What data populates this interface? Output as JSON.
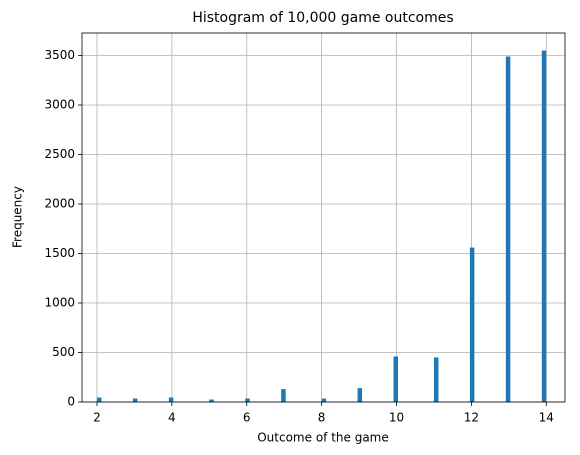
{
  "chart_data": {
    "type": "histogram",
    "title": "Histogram of 10,000 game outcomes",
    "x_label": "Outcome of the game",
    "y_label": "Frequency",
    "bins": [
      2,
      2.12,
      2.24,
      2.36,
      2.48,
      2.6,
      2.72,
      2.84,
      2.96,
      3.08,
      3.2,
      3.32,
      3.44,
      3.56,
      3.68,
      3.8,
      3.92,
      4.04,
      4.16,
      4.28,
      4.4,
      4.52,
      4.64,
      4.76,
      4.88,
      5,
      5.12,
      5.24,
      5.36,
      5.48,
      5.6,
      5.72,
      5.84,
      5.96,
      6.08,
      6.2,
      6.32,
      6.44,
      6.56,
      6.68,
      6.8,
      6.92,
      7.04,
      7.16,
      7.28,
      7.4,
      7.52,
      7.64,
      7.76,
      7.88,
      8,
      8.12,
      8.24,
      8.36,
      8.48,
      8.6,
      8.72,
      8.84,
      8.96,
      9.08,
      9.2,
      9.32,
      9.44,
      9.56,
      9.68,
      9.8,
      9.92,
      10.04,
      10.16,
      10.28,
      10.4,
      10.52,
      10.64,
      10.76,
      10.88,
      11,
      11.12,
      11.24,
      11.36,
      11.48,
      11.6,
      11.72,
      11.84,
      11.96,
      12.08,
      12.2,
      12.32,
      12.44,
      12.56,
      12.68,
      12.8,
      12.92,
      13.04,
      13.16,
      13.28,
      13.4,
      13.52,
      13.64,
      13.76,
      13.88,
      14
    ],
    "values": [
      45,
      0,
      0,
      0,
      0,
      0,
      0,
      0,
      35,
      0,
      0,
      0,
      0,
      0,
      0,
      0,
      45,
      0,
      0,
      0,
      0,
      0,
      0,
      0,
      0,
      25,
      0,
      0,
      0,
      0,
      0,
      0,
      0,
      35,
      0,
      0,
      0,
      0,
      0,
      0,
      0,
      130,
      0,
      0,
      0,
      0,
      0,
      0,
      0,
      0,
      35,
      0,
      0,
      0,
      0,
      0,
      0,
      0,
      140,
      0,
      0,
      0,
      0,
      0,
      0,
      0,
      460,
      0,
      0,
      0,
      0,
      0,
      0,
      0,
      0,
      450,
      0,
      0,
      0,
      0,
      0,
      0,
      0,
      1560,
      0,
      0,
      0,
      0,
      0,
      0,
      0,
      3490,
      0,
      0,
      0,
      0,
      0,
      0,
      0,
      3550
    ],
    "color": "#1f77b4",
    "xlim": [
      1.6,
      14.5
    ],
    "xticks": [
      2,
      4,
      6,
      8,
      10,
      12,
      14
    ],
    "ylim": [
      0,
      3727.5
    ],
    "yticks": [
      0,
      500,
      1000,
      1500,
      2000,
      2500,
      3000,
      3500
    ],
    "grid": true
  }
}
